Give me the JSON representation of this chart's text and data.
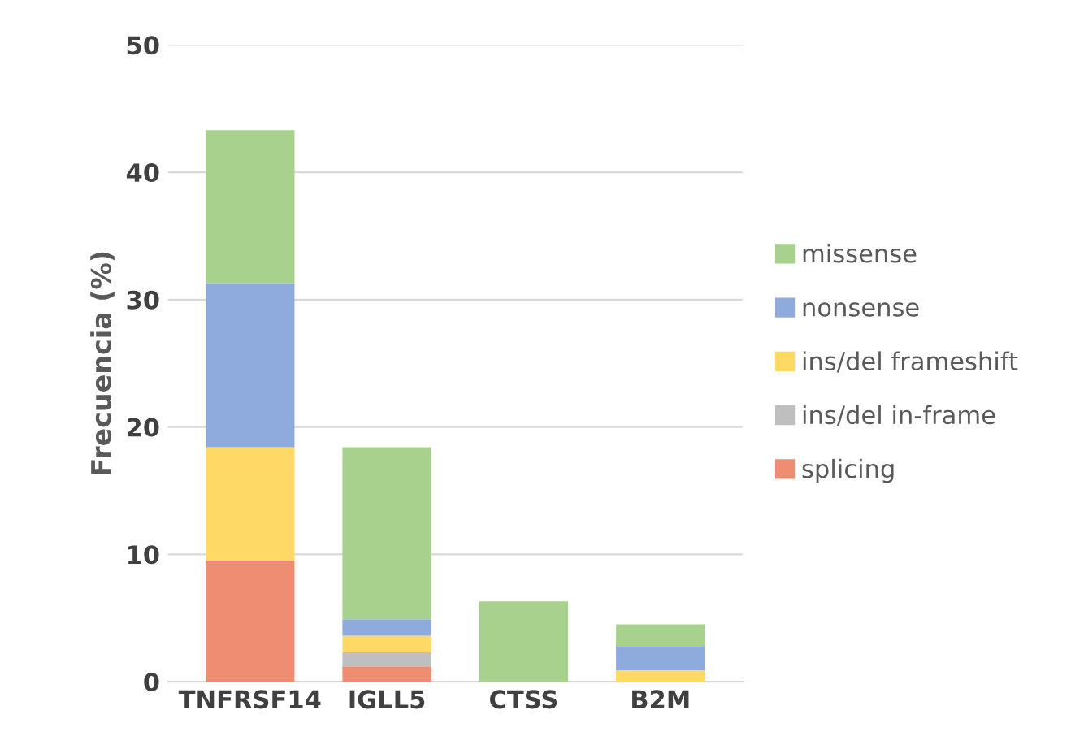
{
  "chart_data": {
    "type": "bar",
    "stacked": true,
    "ylabel": "Frecuencia (%)",
    "categories": [
      "TNFRSF14",
      "IGLL5",
      "CTSS",
      "B2M"
    ],
    "series": [
      {
        "name": "splicing",
        "color": "#ee8d72",
        "values": [
          9.5,
          1.2,
          0,
          0
        ]
      },
      {
        "name": "ins/del in-frame",
        "color": "#bfbfbf",
        "values": [
          0,
          1.1,
          0,
          0
        ]
      },
      {
        "name": "ins/del frameshift",
        "color": "#ffd966",
        "values": [
          8.9,
          1.3,
          0,
          0.9
        ]
      },
      {
        "name": "nonsense",
        "color": "#8faadc",
        "values": [
          12.9,
          1.3,
          0,
          1.9
        ]
      },
      {
        "name": "missense",
        "color": "#a9d18e",
        "values": [
          12.0,
          13.5,
          6.3,
          1.7
        ]
      }
    ],
    "ylim": [
      0,
      50
    ],
    "yticks": [
      0,
      10,
      20,
      30,
      40,
      50
    ],
    "grid": "y",
    "legend": "right"
  }
}
